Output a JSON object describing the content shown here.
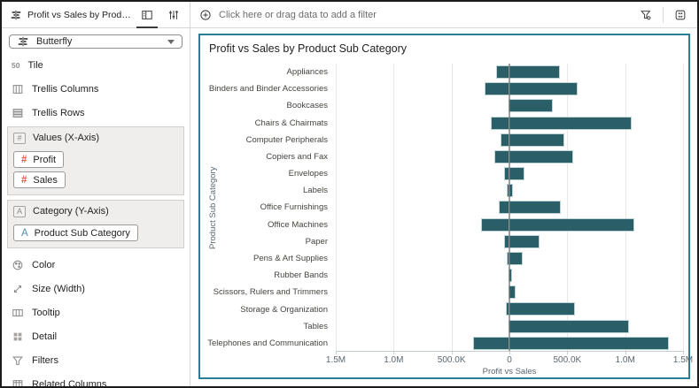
{
  "sidebar": {
    "header": {
      "title": "Profit vs Sales by Product Sub...",
      "icons": {
        "chart": "butterfly-chart-icon",
        "grammar": "grammar-panel-icon",
        "properties": "properties-icon"
      }
    },
    "chart_type": {
      "label": "Butterfly",
      "icon": "butterfly-chart-icon"
    },
    "items_top": [
      {
        "label": "Tile",
        "icon": "tile-icon"
      },
      {
        "label": "Trellis Columns",
        "icon": "trellis-columns-icon"
      },
      {
        "label": "Trellis Rows",
        "icon": "trellis-rows-icon"
      }
    ],
    "sections": [
      {
        "label": "Values (X-Axis)",
        "icon": "number-box-icon",
        "chips": [
          {
            "label": "Profit",
            "icon": "number-icon"
          },
          {
            "label": "Sales",
            "icon": "number-icon"
          }
        ]
      },
      {
        "label": "Category (Y-Axis)",
        "icon": "text-box-icon",
        "chips": [
          {
            "label": "Product Sub Category",
            "icon": "text-attribute-icon"
          }
        ]
      }
    ],
    "items_bottom": [
      {
        "label": "Color",
        "icon": "color-icon"
      },
      {
        "label": "Size (Width)",
        "icon": "size-icon"
      },
      {
        "label": "Tooltip",
        "icon": "tooltip-icon"
      },
      {
        "label": "Detail",
        "icon": "detail-icon"
      },
      {
        "label": "Filters",
        "icon": "filter-icon"
      },
      {
        "label": "Related Columns",
        "icon": "related-columns-icon"
      }
    ]
  },
  "filter_bar": {
    "placeholder": "Click here or drag data to add a filter",
    "icons": {
      "add": "add-filter-icon",
      "filter": "filter-options-icon",
      "canvas": "canvas-properties-icon"
    }
  },
  "chart": {
    "title": "Profit vs Sales by Product Sub Category",
    "xlabel": "Profit vs Sales",
    "ylabel": "Product Sub Category"
  },
  "chart_data": {
    "type": "bar",
    "subtype": "butterfly",
    "orientation": "horizontal",
    "title": "Profit vs Sales by Product Sub Category",
    "xlabel": "Profit vs Sales",
    "ylabel": "Product Sub Category",
    "categories": [
      "Appliances",
      "Binders and Binder Accessories",
      "Bookcases",
      "Chairs & Chairmats",
      "Computer Peripherals",
      "Copiers and Fax",
      "Envelopes",
      "Labels",
      "Office Furnishings",
      "Office Machines",
      "Paper",
      "Pens & Art Supplies",
      "Rubber Bands",
      "Scissors, Rulers and Trimmers",
      "Storage & Organization",
      "Tables",
      "Telephones and Communication"
    ],
    "series": [
      {
        "name": "Profit",
        "side": "left",
        "values": [
          110000,
          210000,
          0,
          155000,
          70000,
          125000,
          40000,
          12000,
          82000,
          235000,
          35000,
          12000,
          0,
          0,
          20000,
          0,
          305000
        ]
      },
      {
        "name": "Sales",
        "side": "right",
        "values": [
          430000,
          585000,
          370000,
          1045000,
          465000,
          545000,
          125000,
          25000,
          440000,
          1075000,
          255000,
          105000,
          18000,
          45000,
          560000,
          1025000,
          1370000
        ]
      }
    ],
    "x_tick_labels": [
      "1.5M",
      "1.0M",
      "500.0K",
      "0",
      "500.0K",
      "1.0M",
      "1.5M"
    ],
    "x_tick_values": [
      -1500000,
      -1000000,
      -500000,
      0,
      500000,
      1000000,
      1500000
    ],
    "axis_max_each_side": 1500000,
    "grid": "vertical-only",
    "legend": "none",
    "bar_color": "#2b5f68"
  },
  "colors": {
    "bar": "#2b5f68",
    "panel_border": "#2b7e95",
    "measure_icon": "#e0584a",
    "attribute_icon": "#4f8bab",
    "centerline": "#6e6e6e"
  }
}
